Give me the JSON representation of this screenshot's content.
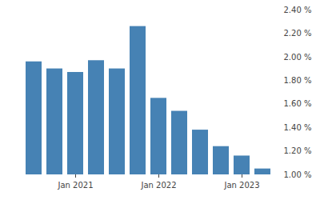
{
  "chart_data": {
    "type": "bar",
    "categories": [
      null,
      null,
      "Jan 2021",
      null,
      null,
      null,
      "Jan 2022",
      null,
      null,
      null,
      "Jan 2023",
      null
    ],
    "values": [
      1.96,
      1.9,
      1.87,
      1.97,
      1.9,
      2.26,
      1.65,
      1.54,
      1.38,
      1.24,
      1.16,
      1.05
    ],
    "color": "#4682b4",
    "ylim": [
      1.0,
      2.4
    ],
    "yticks": [
      {
        "value": 1.0,
        "label": "1.00 %"
      },
      {
        "value": 1.2,
        "label": "1.20 %"
      },
      {
        "value": 1.4,
        "label": "1.40 %"
      },
      {
        "value": 1.6,
        "label": "1.60 %"
      },
      {
        "value": 1.8,
        "label": "1.80 %"
      },
      {
        "value": 2.0,
        "label": "2.00 %"
      },
      {
        "value": 2.2,
        "label": "2.20 %"
      },
      {
        "value": 2.4,
        "label": "2.40 %"
      }
    ],
    "grid": false
  }
}
